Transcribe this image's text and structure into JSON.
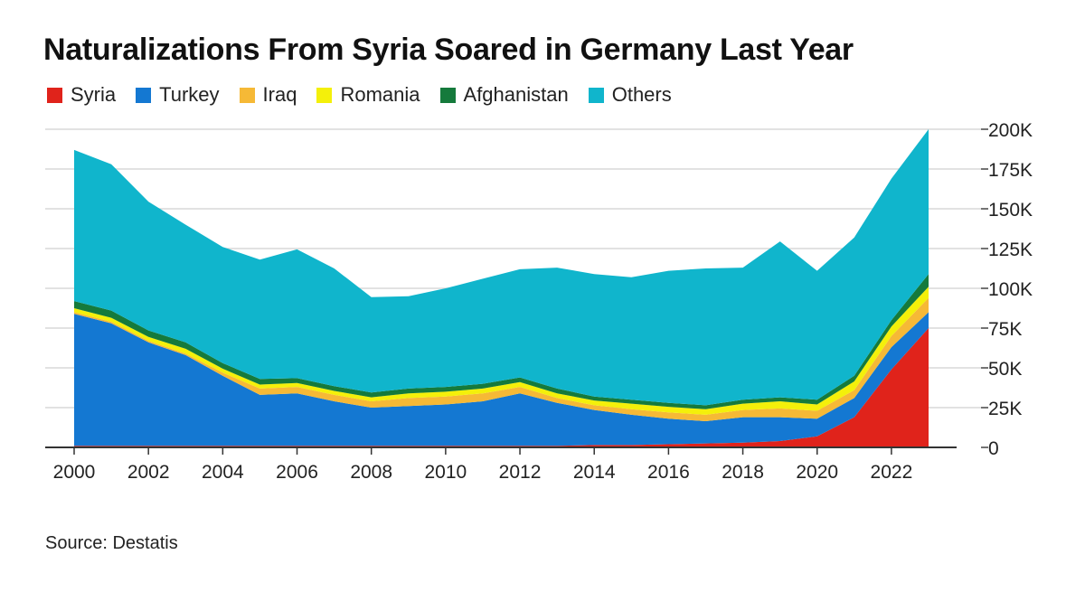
{
  "chart_data": {
    "type": "area",
    "stacked": true,
    "title": "Naturalizations From Syria Soared in Germany Last Year",
    "source": "Source: Destatis",
    "x": [
      2000,
      2001,
      2002,
      2003,
      2004,
      2005,
      2006,
      2007,
      2008,
      2009,
      2010,
      2011,
      2012,
      2013,
      2014,
      2015,
      2016,
      2017,
      2018,
      2019,
      2020,
      2021,
      2022,
      2023
    ],
    "x_ticks": [
      "2000",
      "2002",
      "2004",
      "2006",
      "2008",
      "2010",
      "2012",
      "2014",
      "2016",
      "2018",
      "2020",
      "2022"
    ],
    "y_ticks": [
      "0",
      "25K",
      "50K",
      "75K",
      "100K",
      "125K",
      "150K",
      "175K",
      "200K"
    ],
    "ylim": [
      0,
      200000
    ],
    "grid": true,
    "y_axis_side": "right",
    "legend_position": "top-left",
    "series": [
      {
        "name": "Syria",
        "color": "#e0231b",
        "values": [
          1000,
          1000,
          1000,
          1000,
          1000,
          1000,
          1000,
          1000,
          1000,
          1000,
          1000,
          1000,
          1000,
          1000,
          1500,
          1500,
          2000,
          2500,
          3000,
          4000,
          7000,
          19000,
          49000,
          75000
        ]
      },
      {
        "name": "Turkey",
        "color": "#1478d2",
        "values": [
          83000,
          77000,
          65000,
          57000,
          44000,
          32000,
          33000,
          28000,
          24000,
          25000,
          26000,
          28000,
          33000,
          27000,
          22000,
          19000,
          16000,
          14000,
          16000,
          15000,
          11000,
          12000,
          14000,
          10000
        ]
      },
      {
        "name": "Iraq",
        "color": "#f6b936",
        "values": [
          1000,
          1000,
          1000,
          1000,
          2000,
          4000,
          4000,
          4000,
          4000,
          5000,
          5000,
          5000,
          4000,
          3000,
          3000,
          3500,
          4000,
          4000,
          4500,
          5500,
          5000,
          5000,
          7000,
          9000
        ]
      },
      {
        "name": "Romania",
        "color": "#f4f00a",
        "values": [
          2500,
          2500,
          2500,
          3000,
          2500,
          2500,
          2500,
          2500,
          2500,
          3000,
          3000,
          3000,
          3000,
          3000,
          3000,
          3500,
          3500,
          3500,
          4000,
          4500,
          4000,
          5500,
          6000,
          7000
        ]
      },
      {
        "name": "Afghanistan",
        "color": "#157a3c",
        "values": [
          4500,
          4500,
          4000,
          4000,
          3500,
          3500,
          3000,
          3000,
          3000,
          3000,
          3000,
          3000,
          3000,
          3000,
          2500,
          2500,
          2500,
          2500,
          2500,
          2500,
          3000,
          3500,
          4000,
          8000
        ]
      },
      {
        "name": "Others",
        "color": "#10b5cc",
        "values": [
          95000,
          92000,
          81000,
          74000,
          73000,
          75000,
          81000,
          74000,
          60000,
          58000,
          62000,
          66000,
          68000,
          76000,
          77000,
          77000,
          83000,
          86000,
          83000,
          98000,
          81000,
          87000,
          89000,
          91000
        ]
      }
    ]
  }
}
